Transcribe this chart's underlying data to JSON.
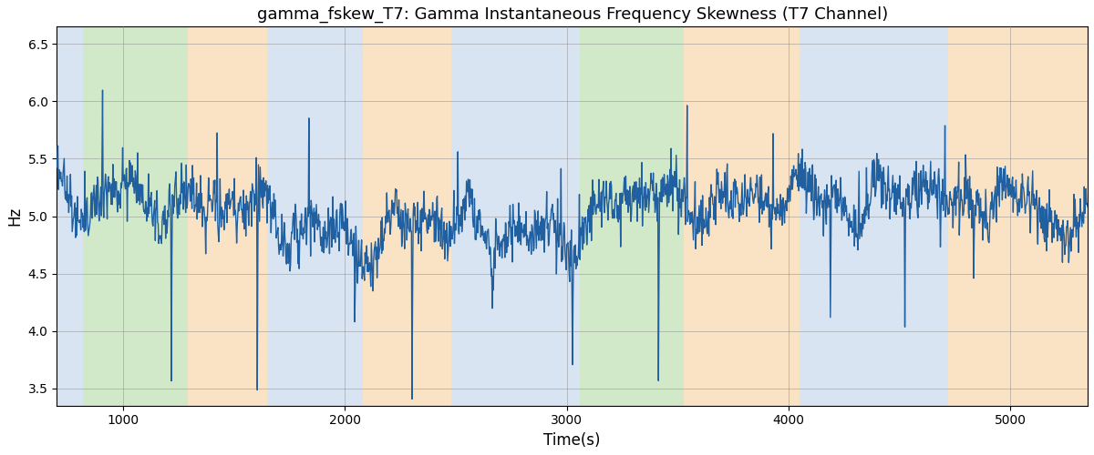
{
  "title": "gamma_fskew_T7: Gamma Instantaneous Frequency Skewness (T7 Channel)",
  "xlabel": "Time(s)",
  "ylabel": "Hz",
  "xlim": [
    700,
    5350
  ],
  "ylim": [
    3.35,
    6.65
  ],
  "yticks": [
    3.5,
    4.0,
    4.5,
    5.0,
    5.5,
    6.0,
    6.5
  ],
  "xticks": [
    1000,
    2000,
    3000,
    4000,
    5000
  ],
  "line_color": "#2060a0",
  "line_width": 1.0,
  "bands": [
    {
      "xstart": 700,
      "xend": 820,
      "color": "#aac4e0",
      "alpha": 0.45
    },
    {
      "xstart": 820,
      "xend": 1290,
      "color": "#90c878",
      "alpha": 0.4
    },
    {
      "xstart": 1290,
      "xend": 1650,
      "color": "#f5c080",
      "alpha": 0.45
    },
    {
      "xstart": 1650,
      "xend": 1720,
      "color": "#aac4e0",
      "alpha": 0.45
    },
    {
      "xstart": 1720,
      "xend": 2080,
      "color": "#aac4e0",
      "alpha": 0.45
    },
    {
      "xstart": 2080,
      "xend": 2480,
      "color": "#f5c080",
      "alpha": 0.45
    },
    {
      "xstart": 2480,
      "xend": 2960,
      "color": "#aac4e0",
      "alpha": 0.45
    },
    {
      "xstart": 2960,
      "xend": 3060,
      "color": "#aac4e0",
      "alpha": 0.45
    },
    {
      "xstart": 3060,
      "xend": 3530,
      "color": "#90c878",
      "alpha": 0.4
    },
    {
      "xstart": 3530,
      "xend": 3600,
      "color": "#f5c080",
      "alpha": 0.45
    },
    {
      "xstart": 3600,
      "xend": 4050,
      "color": "#f5c080",
      "alpha": 0.45
    },
    {
      "xstart": 4050,
      "xend": 4570,
      "color": "#aac4e0",
      "alpha": 0.45
    },
    {
      "xstart": 4570,
      "xend": 4720,
      "color": "#aac4e0",
      "alpha": 0.45
    },
    {
      "xstart": 4720,
      "xend": 5350,
      "color": "#f5c080",
      "alpha": 0.45
    }
  ],
  "n_points": 1800,
  "seed": 7
}
